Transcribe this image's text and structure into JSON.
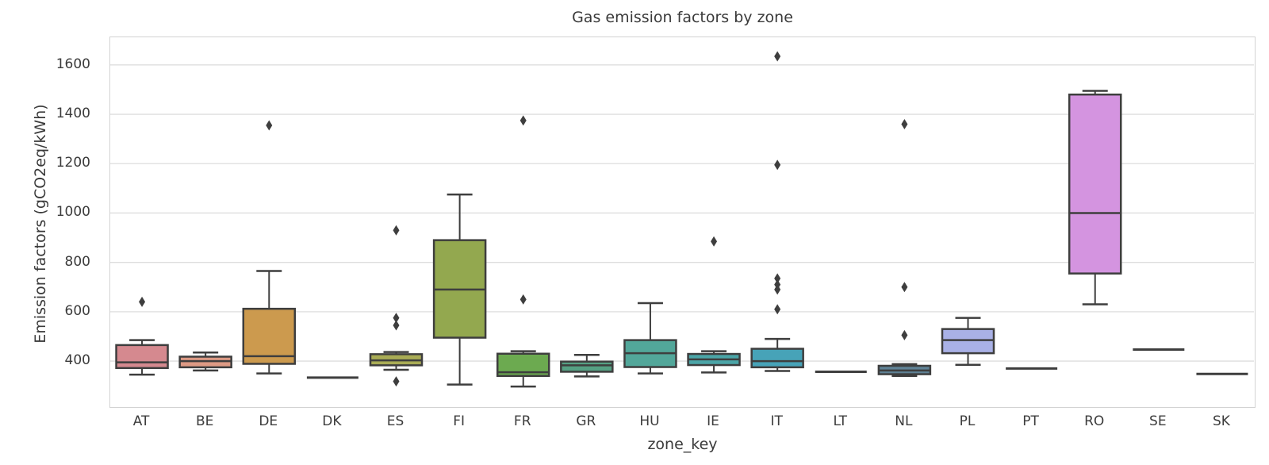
{
  "title": "Gas emission factors by zone",
  "chart_data": {
    "type": "boxplot",
    "title": "Gas emission factors by zone",
    "xlabel": "zone_key",
    "ylabel": "Emission factors (gCO2eq/kWh)",
    "ylim": [
      217,
      1712
    ],
    "yticks": [
      400,
      600,
      800,
      1000,
      1200,
      1400,
      1600
    ],
    "grid": "horizontal",
    "legend": "none",
    "categories": [
      "AT",
      "BE",
      "DE",
      "DK",
      "ES",
      "FI",
      "FR",
      "GR",
      "HU",
      "IE",
      "IT",
      "LT",
      "NL",
      "PL",
      "PT",
      "RO",
      "SE",
      "SK"
    ],
    "series": [
      {
        "zone": "AT",
        "whislo": 345,
        "q1": 372,
        "med": 395,
        "q3": 465,
        "whishi": 485,
        "outliers": [
          640
        ],
        "color": "#d5898f"
      },
      {
        "zone": "BE",
        "whislo": 362,
        "q1": 375,
        "med": 400,
        "q3": 418,
        "whishi": 435,
        "outliers": [],
        "color": "#dd9a85"
      },
      {
        "zone": "DE",
        "whislo": 350,
        "q1": 389,
        "med": 420,
        "q3": 612,
        "whishi": 765,
        "outliers": [
          1355
        ],
        "color": "#cc9a4e"
      },
      {
        "zone": "DK",
        "whislo": 333,
        "q1": 333,
        "med": 333,
        "q3": 333,
        "whishi": 333,
        "outliers": [],
        "color": "#b3a14b"
      },
      {
        "zone": "ES",
        "whislo": 365,
        "q1": 383,
        "med": 403,
        "q3": 428,
        "whishi": 437,
        "outliers": [
          930,
          575,
          545,
          318
        ],
        "color": "#a9ac55"
      },
      {
        "zone": "FI",
        "whislo": 305,
        "q1": 495,
        "med": 690,
        "q3": 890,
        "whishi": 1075,
        "outliers": [],
        "color": "#93a84f"
      },
      {
        "zone": "FR",
        "whislo": 297,
        "q1": 340,
        "med": 355,
        "q3": 430,
        "whishi": 440,
        "outliers": [
          1375,
          650
        ],
        "color": "#6caa50"
      },
      {
        "zone": "GR",
        "whislo": 338,
        "q1": 357,
        "med": 383,
        "q3": 398,
        "whishi": 425,
        "outliers": [],
        "color": "#55a083"
      },
      {
        "zone": "HU",
        "whislo": 350,
        "q1": 376,
        "med": 432,
        "q3": 485,
        "whishi": 635,
        "outliers": [],
        "color": "#52a79a"
      },
      {
        "zone": "IE",
        "whislo": 354,
        "q1": 384,
        "med": 407,
        "q3": 429,
        "whishi": 440,
        "outliers": [
          885
        ],
        "color": "#4ba5a7"
      },
      {
        "zone": "IT",
        "whislo": 360,
        "q1": 375,
        "med": 400,
        "q3": 450,
        "whishi": 490,
        "outliers": [
          1635,
          1195,
          735,
          710,
          690,
          610
        ],
        "color": "#47a3b8"
      },
      {
        "zone": "LT",
        "whislo": 357,
        "q1": 357,
        "med": 357,
        "q3": 357,
        "whishi": 357,
        "outliers": [],
        "color": "#459fc9"
      },
      {
        "zone": "NL",
        "whislo": 340,
        "q1": 347,
        "med": 362,
        "q3": 381,
        "whishi": 388,
        "outliers": [
          1360,
          700,
          505
        ],
        "color": "#5f8296"
      },
      {
        "zone": "PL",
        "whislo": 385,
        "q1": 432,
        "med": 485,
        "q3": 530,
        "whishi": 575,
        "outliers": [],
        "color": "#a9b1e6"
      },
      {
        "zone": "PT",
        "whislo": 370,
        "q1": 370,
        "med": 370,
        "q3": 370,
        "whishi": 370,
        "outliers": [],
        "color": "#ab93e2"
      },
      {
        "zone": "RO",
        "whislo": 630,
        "q1": 755,
        "med": 1000,
        "q3": 1480,
        "whishi": 1495,
        "outliers": [],
        "color": "#d494e0"
      },
      {
        "zone": "SE",
        "whislo": 447,
        "q1": 447,
        "med": 447,
        "q3": 447,
        "whishi": 447,
        "outliers": [],
        "color": "#dc85cd"
      },
      {
        "zone": "SK",
        "whislo": 348,
        "q1": 348,
        "med": 348,
        "q3": 348,
        "whishi": 348,
        "outliers": [],
        "color": "#e883a9"
      }
    ]
  },
  "colors": {
    "background": "#ffffff",
    "box_line": "#3e3e3e",
    "flier": "#3e3e3e",
    "grid": "#dedede",
    "spine": "#d3d3d3",
    "text": "#3a3a3a"
  }
}
